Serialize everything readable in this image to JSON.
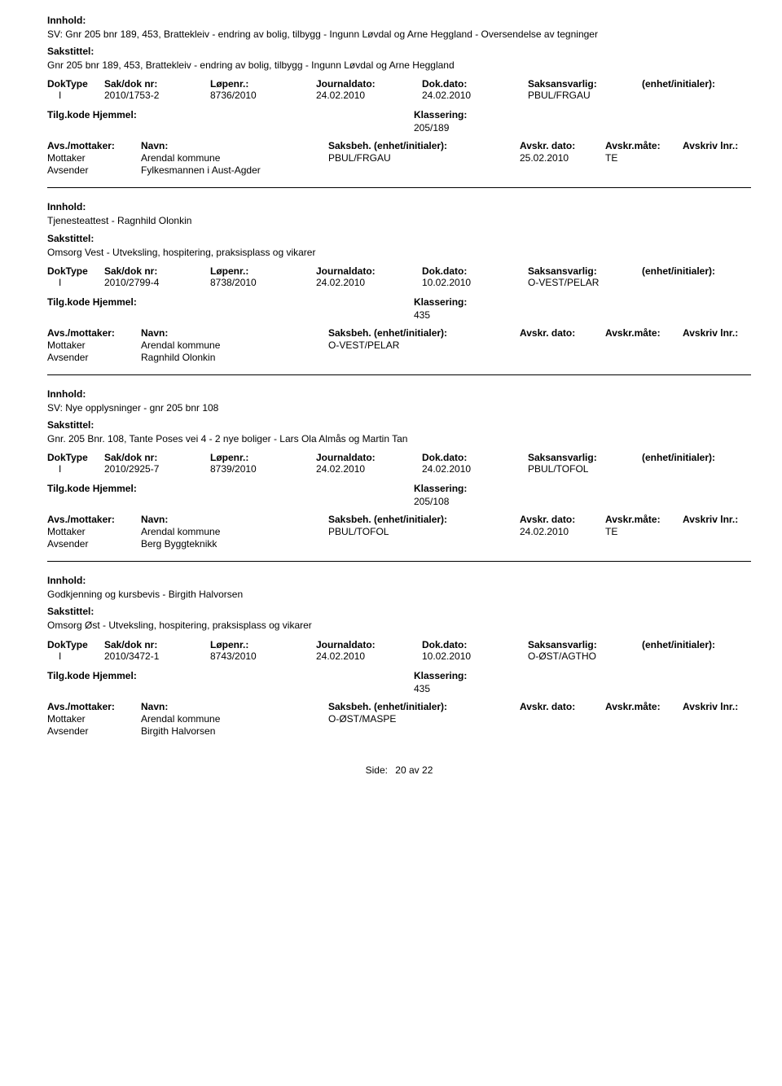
{
  "labels": {
    "innhold": "Innhold:",
    "sakstittel": "Sakstittel:",
    "doktype": "DokType",
    "sakdok": "Sak/dok nr:",
    "lopenr": "Løpenr.:",
    "journaldato": "Journaldato:",
    "dokdato": "Dok.dato:",
    "saksansvarlig": "Saksansvarlig:",
    "enhet": "(enhet/initialer):",
    "tilgkode": "Tilg.kode",
    "hjemmel": "Hjemmel:",
    "klassering": "Klassering:",
    "avsmottaker": "Avs./mottaker:",
    "navn": "Navn:",
    "saksbeh": "Saksbeh.",
    "saksbeh_enh": "(enhet/initialer):",
    "avskr_dato": "Avskr. dato:",
    "avskr_mate": "Avskr.måte:",
    "avskriv_lnr": "Avskriv lnr.:",
    "mottaker": "Mottaker",
    "avsender": "Avsender",
    "side": "Side:",
    "av": "av"
  },
  "records": [
    {
      "innhold": "SV: Gnr 205 bnr 189, 453, Brattekleiv - endring av bolig, tilbygg - Ingunn Løvdal og Arne Heggland - Oversendelse av tegninger",
      "sakstittel": "Gnr 205 bnr 189, 453, Brattekleiv - endring av bolig, tilbygg - Ingunn Løvdal og Arne Heggland",
      "doktype": "I",
      "sakdok": "2010/1753-2",
      "lopenr": "8736/2010",
      "journaldato": "24.02.2010",
      "dokdato": "24.02.2010",
      "saksansvarlig": "PBUL/FRGAU",
      "klassering": "205/189",
      "parties": [
        {
          "role": "Mottaker",
          "name": "Arendal kommune",
          "sb": "PBUL/FRGAU",
          "dato": "25.02.2010",
          "mate": "TE"
        },
        {
          "role": "Avsender",
          "name": "Fylkesmannen i Aust-Agder",
          "sb": "",
          "dato": "",
          "mate": ""
        }
      ]
    },
    {
      "innhold": "Tjenesteattest - Ragnhild Olonkin",
      "sakstittel": "Omsorg Vest - Utveksling, hospitering, praksisplass og vikarer",
      "doktype": "I",
      "sakdok": "2010/2799-4",
      "lopenr": "8738/2010",
      "journaldato": "24.02.2010",
      "dokdato": "10.02.2010",
      "saksansvarlig": "O-VEST/PELAR",
      "klassering": "435",
      "parties": [
        {
          "role": "Mottaker",
          "name": "Arendal kommune",
          "sb": "O-VEST/PELAR",
          "dato": "",
          "mate": ""
        },
        {
          "role": "Avsender",
          "name": "Ragnhild Olonkin",
          "sb": "",
          "dato": "",
          "mate": ""
        }
      ]
    },
    {
      "innhold": "SV: Nye opplysninger - gnr 205 bnr 108",
      "sakstittel": "Gnr. 205 Bnr. 108, Tante Poses vei 4 - 2 nye boliger - Lars Ola Almås og Martin Tan",
      "doktype": "I",
      "sakdok": "2010/2925-7",
      "lopenr": "8739/2010",
      "journaldato": "24.02.2010",
      "dokdato": "24.02.2010",
      "saksansvarlig": "PBUL/TOFOL",
      "klassering": "205/108",
      "parties": [
        {
          "role": "Mottaker",
          "name": "Arendal kommune",
          "sb": "PBUL/TOFOL",
          "dato": "24.02.2010",
          "mate": "TE"
        },
        {
          "role": "Avsender",
          "name": "Berg Byggteknikk",
          "sb": "",
          "dato": "",
          "mate": ""
        }
      ]
    },
    {
      "innhold": "Godkjenning og kursbevis - Birgith Halvorsen",
      "sakstittel": "Omsorg Øst - Utveksling, hospitering, praksisplass og vikarer",
      "doktype": "I",
      "sakdok": "2010/3472-1",
      "lopenr": "8743/2010",
      "journaldato": "24.02.2010",
      "dokdato": "10.02.2010",
      "saksansvarlig": "O-ØST/AGTHO",
      "klassering": "435",
      "parties": [
        {
          "role": "Mottaker",
          "name": "Arendal kommune",
          "sb": "O-ØST/MASPE",
          "dato": "",
          "mate": ""
        },
        {
          "role": "Avsender",
          "name": "Birgith Halvorsen",
          "sb": "",
          "dato": "",
          "mate": ""
        }
      ]
    }
  ],
  "footer": {
    "page": "20",
    "total": "22"
  }
}
